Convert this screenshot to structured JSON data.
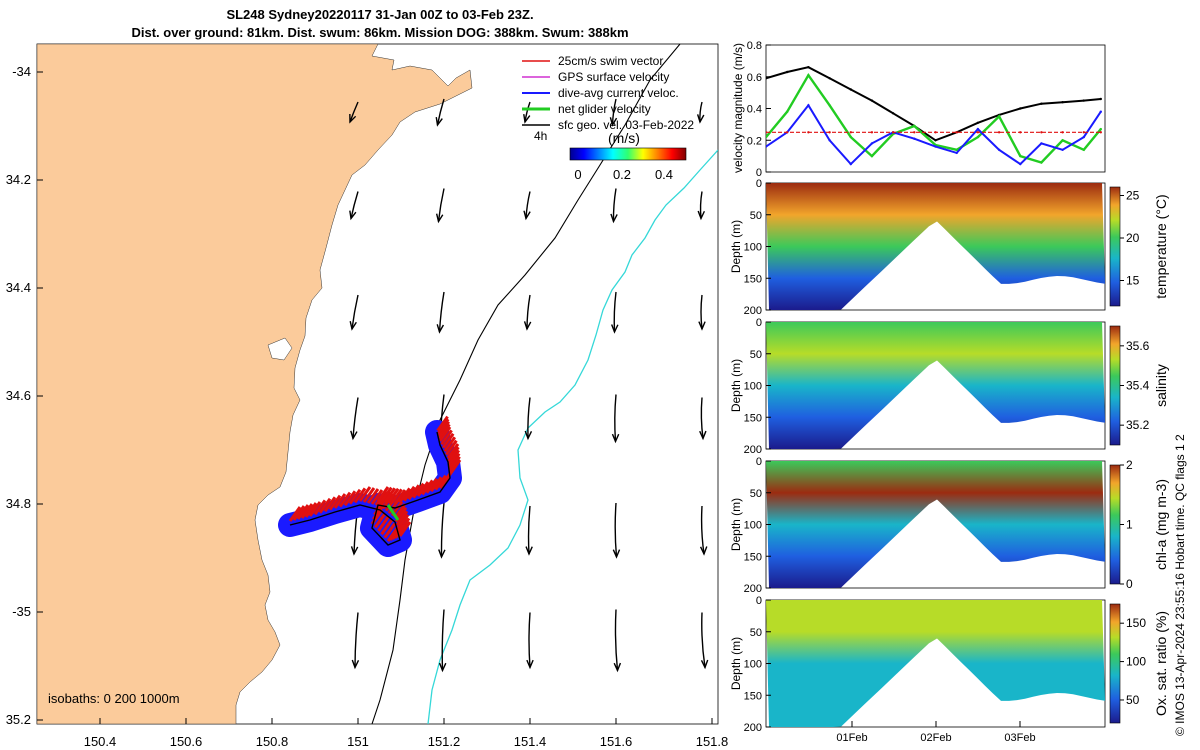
{
  "header": {
    "title_line1": "SL248 Sydney20220117 31-Jan 00Z to 03-Feb 23Z.",
    "title_line2": "Dist. over ground: 81km. Dist. swum: 86km. Mission DOG: 388km. Swum: 388km"
  },
  "map": {
    "lon_ticks": [
      "150.4",
      "150.6",
      "150.8",
      "151",
      "151.2",
      "151.4",
      "151.6",
      "151.8"
    ],
    "lat_ticks": [
      "-34",
      "34.2",
      "34.4",
      "34.6",
      "34.8",
      "-35",
      "35.2"
    ],
    "legend": [
      {
        "label": "25cm/s swim vector",
        "color": "#e01010"
      },
      {
        "label": "GPS surface velocity",
        "color": "#d030d0"
      },
      {
        "label": "dive-avg current veloc.",
        "color": "#1a1aff"
      },
      {
        "label": "net glider velocity",
        "color": "#22cc22"
      },
      {
        "label": "sfc geo. vel. 03-Feb-2022",
        "color": "#000000"
      }
    ],
    "time_step_label": "4h",
    "colorbar_unit": "(m/s)",
    "colorbar_ticks": [
      "0",
      "0.2",
      "0.4"
    ],
    "isobaths_label": "isobaths: 0   200  1000m",
    "land_color": "#fbcb9b",
    "isobath_200_color": "#35d8d8",
    "isobath_1000_color": "#000000"
  },
  "chart_data": [
    {
      "type": "line",
      "title": "",
      "ylabel": "velocity magnitude (m/s)",
      "ylim": [
        0,
        0.8
      ],
      "y_ticks": [
        "0",
        "0.2",
        "0.4",
        "0.6",
        "0.8"
      ],
      "x": [
        0,
        0.25,
        0.5,
        0.75,
        1,
        1.25,
        1.5,
        1.75,
        2,
        2.25,
        2.5,
        2.75,
        3,
        3.25,
        3.5,
        3.75,
        3.95
      ],
      "series": [
        {
          "name": "sfc geo. vel.",
          "color": "#000000",
          "values": [
            0.59,
            0.63,
            0.66,
            0.59,
            0.52,
            0.45,
            0.37,
            0.29,
            0.2,
            0.25,
            0.31,
            0.36,
            0.4,
            0.43,
            0.44,
            0.45,
            0.46
          ]
        },
        {
          "name": "net glider velocity",
          "color": "#22cc22",
          "values": [
            0.22,
            0.38,
            0.61,
            0.42,
            0.22,
            0.1,
            0.24,
            0.29,
            0.17,
            0.14,
            0.22,
            0.35,
            0.1,
            0.06,
            0.2,
            0.14,
            0.27
          ]
        },
        {
          "name": "dive-avg current veloc.",
          "color": "#1a1aff",
          "values": [
            0.16,
            0.25,
            0.42,
            0.2,
            0.05,
            0.18,
            0.25,
            0.21,
            0.16,
            0.12,
            0.27,
            0.14,
            0.05,
            0.18,
            0.14,
            0.22,
            0.38
          ]
        },
        {
          "name": "25cm/s swim vector",
          "color": "#e01010",
          "values": [
            0.25,
            0.25,
            0.25,
            0.25,
            0.25,
            0.25,
            0.25,
            0.25,
            0.25,
            0.25,
            0.25,
            0.25,
            0.25,
            0.25,
            0.25,
            0.25,
            0.25
          ]
        }
      ]
    },
    {
      "type": "heatmap",
      "name": "temperature",
      "cbar_label": "temperature (°C)",
      "ylabel": "Depth (m)",
      "ylim": [
        200,
        0
      ],
      "y_ticks": [
        "0",
        "50",
        "100",
        "150",
        "200"
      ],
      "cbar_range": [
        12,
        26
      ],
      "cbar_ticks": [
        "15",
        "20",
        "25"
      ],
      "surface_value": 26,
      "deep_value": 12
    },
    {
      "type": "heatmap",
      "name": "salinity",
      "cbar_label": "salinity",
      "ylabel": "Depth (m)",
      "ylim": [
        200,
        0
      ],
      "y_ticks": [
        "0",
        "50",
        "100",
        "150",
        "200"
      ],
      "cbar_range": [
        35.1,
        35.7
      ],
      "cbar_ticks": [
        "35.2",
        "35.4",
        "35.6"
      ],
      "surface_value": 35.45,
      "deep_value": 35.15
    },
    {
      "type": "heatmap",
      "name": "chl-a",
      "cbar_label": "chl-a (mg m-3)",
      "ylabel": "Depth (m)",
      "ylim": [
        200,
        0
      ],
      "y_ticks": [
        "0",
        "50",
        "100",
        "150",
        "200"
      ],
      "cbar_range": [
        0,
        2
      ],
      "cbar_ticks": [
        "0",
        "1",
        "2"
      ],
      "surface_value": 0.6,
      "max_value": 2.0,
      "deep_value": 0.05
    },
    {
      "type": "heatmap",
      "name": "oxygen",
      "cbar_label": "Ox. sat. ratio (%)",
      "ylabel": "Depth (m)",
      "ylim": [
        200,
        0
      ],
      "y_ticks": [
        "0",
        "50",
        "100",
        "150",
        "200"
      ],
      "cbar_range": [
        20,
        175
      ],
      "cbar_ticks": [
        "50",
        "100",
        "150"
      ],
      "surface_value": 140,
      "deep_value": 90
    }
  ],
  "time_axis": {
    "ticks": [
      "01Feb",
      "02Feb",
      "03Feb"
    ]
  },
  "footer": {
    "credit": "© IMOS 13-Apr-2024 23:55:16 Hobart time. QC flags 1  2"
  }
}
